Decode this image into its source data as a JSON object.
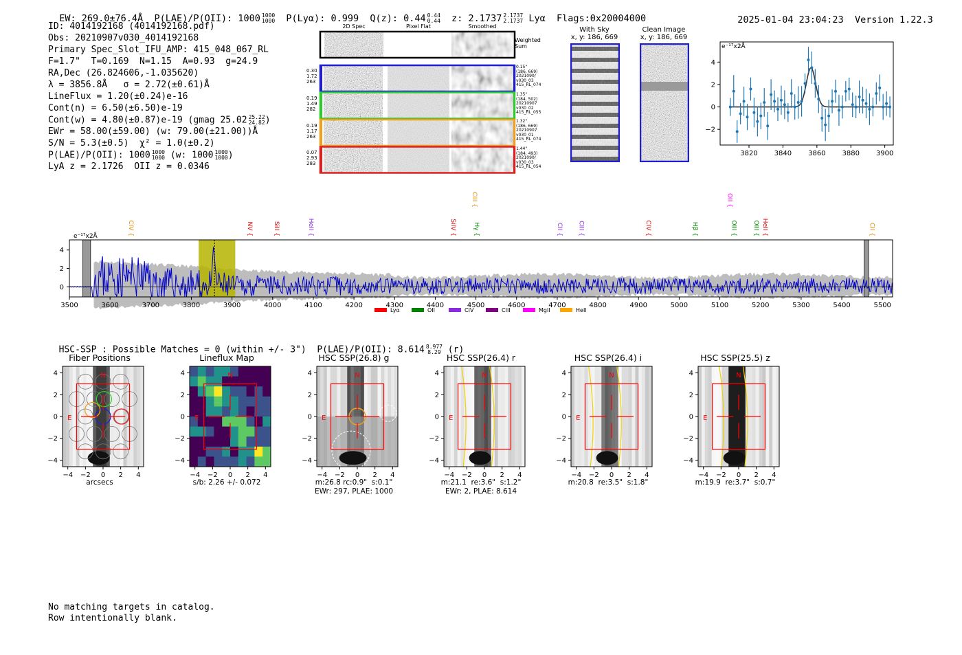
{
  "header": {
    "ew": "EW: 269.0±76.4Å",
    "plae_label": "P(LAE)/P(OII): 1000",
    "plae_hi": "1000",
    "plae_lo": "1000",
    "plya": "P(Lyα): 0.999",
    "qz_label": "Q(z): 0.44",
    "qz_hi": "0.44",
    "qz_lo": "0.44",
    "z_label": "z: 2.1737",
    "z_hi": "2.1737",
    "z_lo": "2.1737",
    "line": "Lyα",
    "flags": "Flags:0x20004000",
    "timestamp": "2025-01-04 23:04:23",
    "version": "Version 1.22.3"
  },
  "info": {
    "id": "ID: 4014192168 (4014192168.pdf)",
    "obs": "Obs: 20210907v030_4014192168",
    "primary": "Primary Spec_Slot_IFU_AMP: 415_048_067_RL",
    "params": "F=1.7\"  T=0.169  N=1.15  A=0.93  g=24.9",
    "radec": "RA,Dec (26.824606,-1.035620)",
    "lam": "λ = 3856.8Å   σ = 2.72(±0.61)Å",
    "lineflux": "LineFlux = 1.20(±0.24)e-16",
    "contn": "Cont(n) = 6.50(±6.50)e-19",
    "contw": "Cont(w) = 4.80(±0.87)e-19 (gmag 25.02",
    "gmag_hi": "25.22",
    "gmag_lo": "24.82",
    "gmag_close": ")",
    "ewr": "EWr = 58.00(±59.00) (w: 79.00(±21.00))Å",
    "sn": "S/N = 5.3(±0.5)  χ² = 1.0(±0.2)",
    "plae2": "P(LAE)/P(OII): 1000",
    "plae2_hi": "1000",
    "plae2_lo": "1000",
    "plae2_w": "(w: 1000",
    "plae2_w_hi": "1000",
    "plae2_w_lo": "1000",
    "plae2_close": ")",
    "lyaz": "LyA z = 2.1726  OII z = 0.0346"
  },
  "cutouts": {
    "col_labels": [
      "2D Spec",
      "Pixel Flat",
      "Smoothed"
    ],
    "weighted": "Weighted\nSum",
    "rows": [
      {
        "left": "0.30\n1.72\n263",
        "right": "0.15\"\n(186, 669)\n2021090/\nv030_03\n415_RL_074",
        "color": "#1f1fd0"
      },
      {
        "left": "0.19\n1.49\n282",
        "right": "1.35\"\n(184, 502)\n20210907\nv030_02\n415_RL_055",
        "color": "#2ecc2e"
      },
      {
        "left": "0.19\n1.17\n263",
        "right": "1.32\"\n(186, 669)\n20210907\nv030_01\n415_RL_074",
        "color": "#f0a020"
      },
      {
        "left": "0.07\n2.93\n283",
        "right": "1.44\"\n(184, 493)\n2021090/\nv030_03\n415_RL_054",
        "color": "#e02020"
      }
    ]
  },
  "withsky": {
    "title": "With Sky",
    "coords": "x, y: 186, 669"
  },
  "clean": {
    "title": "Clean Image",
    "coords": "x, y: 186, 669"
  },
  "colors": {
    "blue": "#1f77b4",
    "spec": "#0000cc",
    "yellow": "#b5b500",
    "red": "#ff0000"
  },
  "chart_data": [
    {
      "type": "scatter",
      "title": "Line fit",
      "ylabel": "e⁻¹⁷x2Å",
      "xlim": [
        3803,
        3905
      ],
      "ylim": [
        -3.4,
        5.8
      ],
      "xticks": [
        "3820",
        "3840",
        "3860",
        "3880",
        "3900"
      ],
      "yticks": [
        "4",
        "2",
        "0",
        "−2"
      ],
      "x": [
        3809,
        3811,
        3813,
        3815,
        3817,
        3819,
        3821,
        3823,
        3825,
        3827,
        3829,
        3831,
        3833,
        3835,
        3837,
        3839,
        3841,
        3843,
        3845,
        3847,
        3849,
        3851,
        3853,
        3855,
        3857,
        3859,
        3861,
        3863,
        3865,
        3867,
        3869,
        3871,
        3873,
        3875,
        3877,
        3879,
        3881,
        3883,
        3885,
        3887,
        3889,
        3891,
        3893,
        3895,
        3897,
        3899,
        3901,
        3903
      ],
      "y": [
        0.0,
        1.4,
        -2.2,
        -0.6,
        0.5,
        -0.9,
        1.6,
        -0.5,
        -1.3,
        -0.8,
        0.4,
        -1.7,
        1.1,
        0.5,
        -0.2,
        0.6,
        0.2,
        -0.5,
        1.2,
        0.0,
        0.4,
        0.5,
        2.1,
        4.2,
        3.5,
        2.1,
        0.7,
        -1.0,
        -1.6,
        -0.8,
        0.5,
        1.4,
        -0.3,
        0.0,
        1.4,
        1.6,
        0.2,
        0.0,
        0.9,
        0.6,
        0.3,
        -0.2,
        0.0,
        1.2,
        1.7,
        0.0,
        0.3,
        0.0
      ],
      "fit": {
        "center": 3856.5,
        "amp": 3.5,
        "sigma": 2.72,
        "baseline": 0.0
      }
    },
    {
      "type": "line",
      "title": "Full spectrum",
      "ylabel": "e⁻¹⁷x2Å",
      "xlim": [
        3500,
        5525
      ],
      "ylim": [
        -1.1,
        5.1
      ],
      "xticks": [
        "3500",
        "3600",
        "3700",
        "3800",
        "3900",
        "4000",
        "4100",
        "4200",
        "4300",
        "4400",
        "4500",
        "4600",
        "4700",
        "4800",
        "4900",
        "5000",
        "5100",
        "5200",
        "5300",
        "5400",
        "5500"
      ],
      "yticks": [
        "4",
        "2",
        "0"
      ],
      "emission_lines": [
        {
          "name": "CIV",
          "x": 3642,
          "color": "#e08a00",
          "high": false
        },
        {
          "name": "NV",
          "x": 3934,
          "color": "#dd0000",
          "high": false
        },
        {
          "name": "SiII",
          "x": 4000,
          "color": "#dd0000",
          "high": false
        },
        {
          "name": "HeII",
          "x": 4085,
          "color": "#8a2be2",
          "high": false
        },
        {
          "name": "SiIV",
          "x": 4435,
          "color": "#dd0000",
          "high": false
        },
        {
          "name": "CIII",
          "x": 4487,
          "color": "#e08a00",
          "high": true
        },
        {
          "name": "Hγ",
          "x": 4492,
          "color": "#008800",
          "high": false
        },
        {
          "name": "CII",
          "x": 4697,
          "color": "#8a2be2",
          "high": false
        },
        {
          "name": "CIII",
          "x": 4750,
          "color": "#8a2be2",
          "high": false
        },
        {
          "name": "CIV",
          "x": 4915,
          "color": "#dd0000",
          "high": false
        },
        {
          "name": "Hβ",
          "x": 5030,
          "color": "#008800",
          "high": false
        },
        {
          "name": "OII",
          "x": 5115,
          "color": "#ff00ff",
          "high": true
        },
        {
          "name": "OIII",
          "x": 5125,
          "color": "#008800",
          "high": false
        },
        {
          "name": "OIII",
          "x": 5180,
          "color": "#008800",
          "high": false
        },
        {
          "name": "HeII",
          "x": 5202,
          "color": "#dd0000",
          "high": false
        },
        {
          "name": "CII",
          "x": 5465,
          "color": "#e08a00",
          "high": false
        }
      ],
      "masked_ranges": [
        [
          3533,
          3552
        ],
        [
          5455,
          5466
        ]
      ],
      "highlight_range": [
        3818,
        3908
      ],
      "legend": [
        {
          "name": "Lyα",
          "color": "#ff0000"
        },
        {
          "name": "OII",
          "color": "#008000"
        },
        {
          "name": "CIV",
          "color": "#8a2be2"
        },
        {
          "name": "CIII",
          "color": "#800080"
        },
        {
          "name": "MgII",
          "color": "#ff00ff"
        },
        {
          "name": "HeII",
          "color": "#ffa500"
        }
      ]
    }
  ],
  "hsc": {
    "summary": "HSC-SSP : Possible Matches = 0 (within +/- 3\")  P(LAE)/P(OII): 8.614",
    "hi": "8.977",
    "lo": "8.29",
    "band": "(r)",
    "panels": [
      {
        "title": "Fiber Positions",
        "label1": "arcsecs",
        "label2": ""
      },
      {
        "title": "Lineflux Map",
        "label1": "s/b: 2.26 +/- 0.072",
        "label2": ""
      },
      {
        "title": "HSC SSP(26.8) g",
        "label1": "m:26.8 rc:0.9\"  s:0.1\"",
        "label2": "EWr: 297, PLAE: 1000"
      },
      {
        "title": "HSC SSP(26.4) r",
        "label1": "m:21.1  re:3.6\"  s:1.2\"",
        "label2": "EWr: 2, PLAE: 8.614"
      },
      {
        "title": "HSC SSP(26.4) i",
        "label1": "m:20.8  re:3.5\"  s:1.8\"",
        "label2": ""
      },
      {
        "title": "HSC SSP(25.5) z",
        "label1": "m:19.9  re:3.7\"  s:0.7\"",
        "label2": ""
      }
    ],
    "ticks": [
      "4",
      "2",
      "0",
      "−2",
      "−4"
    ],
    "xticks": [
      "−4",
      "−2",
      "0",
      "2",
      "4"
    ],
    "compass_n": "N",
    "compass_e": "E"
  },
  "footer": {
    "line1": "No matching targets in catalog.",
    "line2": "Row intentionally blank."
  }
}
